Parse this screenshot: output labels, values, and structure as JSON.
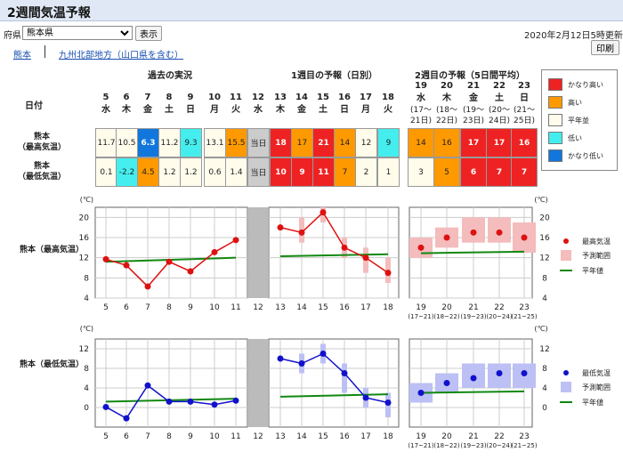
{
  "page": {
    "title": "2週間気温予報",
    "pref_label": "府県",
    "pref_selected": "熊本県",
    "show_button": "表示",
    "updated": "2020年2月12日5時更新",
    "print_button": "印刷",
    "tab_kumamoto": "熊本",
    "tab_region": "九州北部地方（山口県を含む）"
  },
  "table": {
    "date_label": "日付",
    "group_past": "過去の実況",
    "group_week1": "1週目の予報（日別）",
    "group_week2": "2週目の予報（5日間平均）",
    "row1_label": "熊本\n（最高気温）",
    "row2_label": "熊本\n（最低気温）",
    "days": [
      {
        "d": "5",
        "w": "水"
      },
      {
        "d": "6",
        "w": "木"
      },
      {
        "d": "7",
        "w": "金"
      },
      {
        "d": "8",
        "w": "土"
      },
      {
        "d": "9",
        "w": "日"
      },
      {
        "d": "10",
        "w": "月"
      },
      {
        "d": "11",
        "w": "火"
      },
      {
        "d": "12",
        "w": "水"
      },
      {
        "d": "13",
        "w": "木"
      },
      {
        "d": "14",
        "w": "金"
      },
      {
        "d": "15",
        "w": "土"
      },
      {
        "d": "16",
        "w": "日"
      },
      {
        "d": "17",
        "w": "月"
      },
      {
        "d": "18",
        "w": "火"
      }
    ],
    "week2_days": [
      {
        "d": "19",
        "w": "水",
        "r1": "(17～",
        "r2": "21日)"
      },
      {
        "d": "20",
        "w": "木",
        "r1": "(18～",
        "r2": "22日)"
      },
      {
        "d": "21",
        "w": "金",
        "r1": "(19～",
        "r2": "23日)"
      },
      {
        "d": "22",
        "w": "土",
        "r1": "(20～",
        "r2": "24日)"
      },
      {
        "d": "23",
        "w": "日",
        "r1": "(21～",
        "r2": "25日)"
      }
    ],
    "max_row": [
      {
        "v": "11.7",
        "c": "normal"
      },
      {
        "v": "10.5",
        "c": "normal"
      },
      {
        "v": "6.3",
        "c": "very_low"
      },
      {
        "v": "11.2",
        "c": "normal"
      },
      {
        "v": "9.3",
        "c": "low"
      },
      {
        "v": "13.1",
        "c": "normal"
      },
      {
        "v": "15.5",
        "c": "high"
      },
      {
        "v": "当日",
        "c": "today"
      },
      {
        "v": "18",
        "c": "very_high"
      },
      {
        "v": "17",
        "c": "high"
      },
      {
        "v": "21",
        "c": "very_high"
      },
      {
        "v": "14",
        "c": "high"
      },
      {
        "v": "12",
        "c": "normal"
      },
      {
        "v": "9",
        "c": "low"
      }
    ],
    "min_row": [
      {
        "v": "0.1",
        "c": "normal"
      },
      {
        "v": "-2.2",
        "c": "low"
      },
      {
        "v": "4.5",
        "c": "high"
      },
      {
        "v": "1.2",
        "c": "normal"
      },
      {
        "v": "1.2",
        "c": "normal"
      },
      {
        "v": "0.6",
        "c": "normal"
      },
      {
        "v": "1.4",
        "c": "normal"
      },
      {
        "v": "当日",
        "c": "today"
      },
      {
        "v": "10",
        "c": "very_high"
      },
      {
        "v": "9",
        "c": "very_high"
      },
      {
        "v": "11",
        "c": "very_high"
      },
      {
        "v": "7",
        "c": "high"
      },
      {
        "v": "2",
        "c": "normal"
      },
      {
        "v": "1",
        "c": "normal"
      }
    ],
    "w2_max": [
      {
        "v": "14",
        "c": "high"
      },
      {
        "v": "16",
        "c": "high"
      },
      {
        "v": "17",
        "c": "very_high"
      },
      {
        "v": "17",
        "c": "very_high"
      },
      {
        "v": "16",
        "c": "very_high"
      }
    ],
    "w2_min": [
      {
        "v": "3",
        "c": "normal"
      },
      {
        "v": "5",
        "c": "high"
      },
      {
        "v": "6",
        "c": "very_high"
      },
      {
        "v": "7",
        "c": "very_high"
      },
      {
        "v": "7",
        "c": "very_high"
      }
    ]
  },
  "legend": [
    {
      "label": "かなり高い",
      "color": "#ee2222"
    },
    {
      "label": "高い",
      "color": "#ff9900"
    },
    {
      "label": "平年並",
      "color": "#fffcec"
    },
    {
      "label": "低い",
      "color": "#44eeee"
    },
    {
      "label": "かなり低い",
      "color": "#1177dd"
    }
  ],
  "colors": {
    "very_high": "#ee2222",
    "high": "#ff9900",
    "normal": "#fffcec",
    "low": "#44eeee",
    "very_low": "#1177dd",
    "today": "#cccccc",
    "max_line": "#dd1111",
    "min_line": "#1111cc",
    "normal_line": "#118811",
    "max_range": "#f4bcbc",
    "min_range": "#bcc0f4",
    "today_bar": "#bbbbbb"
  },
  "chart_data": [
    {
      "type": "line",
      "title": "熊本（最高気温）",
      "unit": "(℃)",
      "ylim": [
        4,
        22
      ],
      "yticks": [
        4,
        8,
        12,
        16,
        20
      ],
      "x_past": [
        "5",
        "6",
        "7",
        "8",
        "9",
        "10",
        "11"
      ],
      "past": [
        11.7,
        10.5,
        6.3,
        11.2,
        9.3,
        13.1,
        15.5
      ],
      "today": "12",
      "x_week1": [
        "13",
        "14",
        "15",
        "16",
        "17",
        "18"
      ],
      "week1": [
        18,
        17,
        21,
        14,
        12,
        9
      ],
      "week1_range": [
        [
          18,
          18
        ],
        [
          15,
          20
        ],
        [
          19,
          22
        ],
        [
          12,
          16
        ],
        [
          9,
          14
        ],
        [
          7,
          12
        ]
      ],
      "x_week2": [
        "19",
        "20",
        "21",
        "22",
        "23"
      ],
      "x_week2_sub": [
        "(17~21)",
        "(18~22)",
        "(19~23)",
        "(20~24)",
        "(21~25)"
      ],
      "week2": [
        14,
        16,
        17,
        17,
        16
      ],
      "week2_range": [
        [
          12,
          16
        ],
        [
          14,
          18
        ],
        [
          15,
          20
        ],
        [
          15,
          20
        ],
        [
          13,
          19
        ]
      ],
      "normal_past": [
        11.2,
        12.0
      ],
      "normal_week1": [
        12.3,
        12.7
      ],
      "normal_week2": [
        12.9,
        13.2
      ],
      "legend": [
        "最高気温",
        "予測範囲",
        "平年値"
      ]
    },
    {
      "type": "line",
      "title": "熊本（最低気温）",
      "unit": "(℃)",
      "ylim": [
        -4,
        14
      ],
      "yticks": [
        0,
        4,
        8,
        12
      ],
      "x_past": [
        "5",
        "6",
        "7",
        "8",
        "9",
        "10",
        "11"
      ],
      "past": [
        0.1,
        -2.2,
        4.5,
        1.2,
        1.2,
        0.6,
        1.4
      ],
      "today": "12",
      "x_week1": [
        "13",
        "14",
        "15",
        "16",
        "17",
        "18"
      ],
      "week1": [
        10,
        9,
        11,
        7,
        2,
        1
      ],
      "week1_range": [
        [
          10,
          10
        ],
        [
          7,
          11
        ],
        [
          9,
          13
        ],
        [
          3,
          9
        ],
        [
          0,
          4
        ],
        [
          -2,
          3
        ]
      ],
      "x_week2": [
        "19",
        "20",
        "21",
        "22",
        "23"
      ],
      "x_week2_sub": [
        "(17~21)",
        "(18~22)",
        "(19~23)",
        "(20~24)",
        "(21~25)"
      ],
      "week2": [
        3,
        5,
        6,
        7,
        7
      ],
      "week2_range": [
        [
          1,
          5
        ],
        [
          3,
          7
        ],
        [
          4,
          9
        ],
        [
          4,
          9
        ],
        [
          4,
          9
        ]
      ],
      "normal_past": [
        1.2,
        1.8
      ],
      "normal_week1": [
        2.2,
        2.7
      ],
      "normal_week2": [
        3.0,
        3.3
      ],
      "legend": [
        "最低気温",
        "予測範囲",
        "平年値"
      ]
    }
  ]
}
